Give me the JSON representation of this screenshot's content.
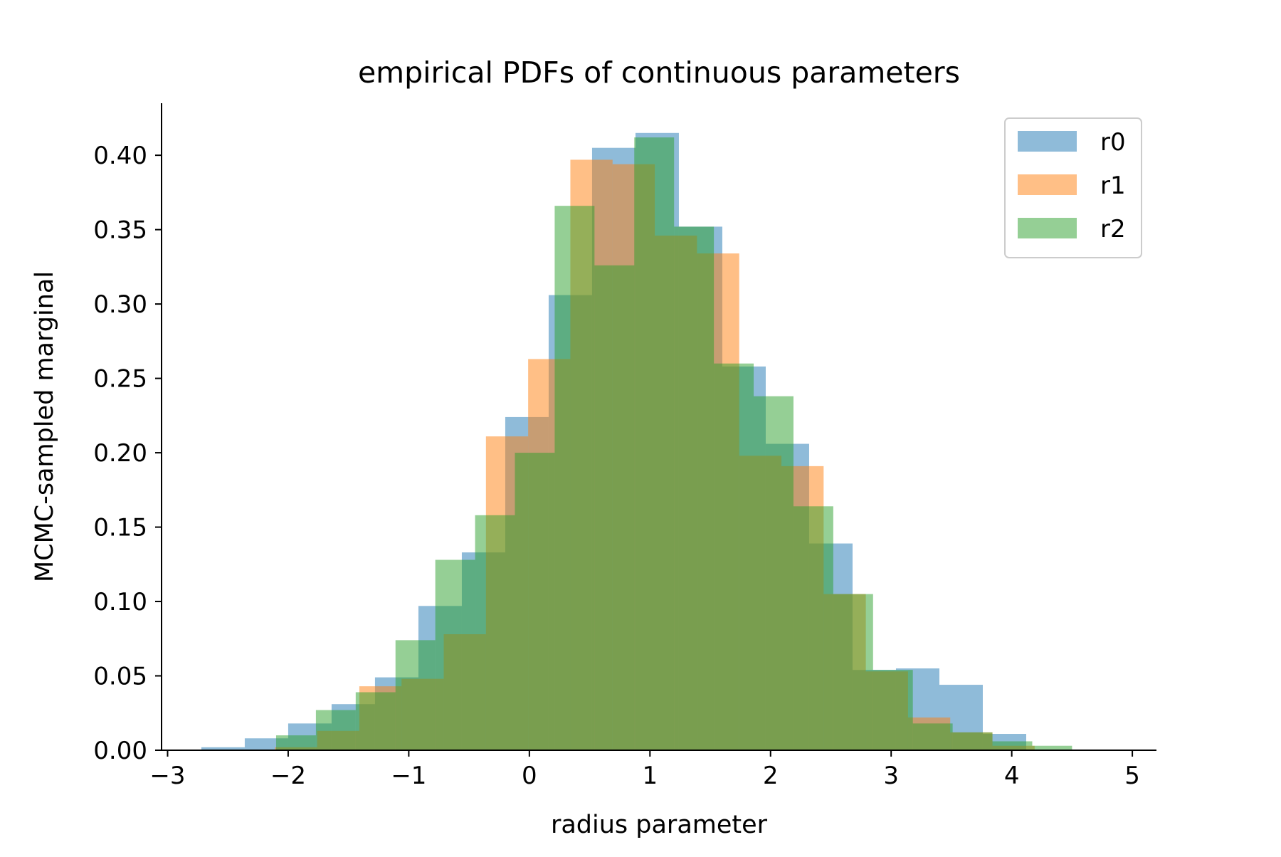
{
  "chart_data": {
    "type": "histogram",
    "title": "empirical PDFs of continuous parameters",
    "xlabel": "radius parameter",
    "ylabel": "MCMC-sampled marginal",
    "xlim": [
      -3.05,
      5.2
    ],
    "ylim": [
      0,
      0.435
    ],
    "xticks": [
      -3,
      -2,
      -1,
      0,
      1,
      2,
      3,
      4,
      5
    ],
    "xtick_labels": [
      "−3",
      "−2",
      "−1",
      "0",
      "1",
      "2",
      "3",
      "4",
      "5"
    ],
    "yticks": [
      0.0,
      0.05,
      0.1,
      0.15,
      0.2,
      0.25,
      0.3,
      0.35,
      0.4
    ],
    "ytick_labels": [
      "0.00",
      "0.05",
      "0.10",
      "0.15",
      "0.20",
      "0.25",
      "0.30",
      "0.35",
      "0.40"
    ],
    "grid": false,
    "legend_position": "top-right",
    "bar_alpha": 0.5,
    "series": [
      {
        "name": "r0",
        "color": "#1f77b4",
        "edges": [
          -2.72,
          -2.36,
          -2.0,
          -1.64,
          -1.28,
          -0.92,
          -0.56,
          -0.2,
          0.16,
          0.52,
          0.88,
          1.24,
          1.6,
          1.96,
          2.32,
          2.68,
          3.04,
          3.4,
          3.76,
          4.12
        ],
        "values": [
          0.002,
          0.008,
          0.018,
          0.031,
          0.049,
          0.097,
          0.133,
          0.224,
          0.306,
          0.405,
          0.415,
          0.352,
          0.258,
          0.206,
          0.139,
          0.054,
          0.055,
          0.044,
          0.011
        ]
      },
      {
        "name": "r1",
        "color": "#ff7f0e",
        "edges": [
          -2.11,
          -1.76,
          -1.41,
          -1.06,
          -0.71,
          -0.36,
          -0.01,
          0.34,
          0.69,
          1.04,
          1.39,
          1.74,
          2.09,
          2.44,
          2.79,
          3.14,
          3.49,
          3.84,
          4.19
        ],
        "values": [
          0.002,
          0.013,
          0.043,
          0.048,
          0.078,
          0.211,
          0.263,
          0.397,
          0.394,
          0.346,
          0.334,
          0.198,
          0.191,
          0.105,
          0.053,
          0.022,
          0.012,
          0.003
        ]
      },
      {
        "name": "r2",
        "color": "#2ca02c",
        "edges": [
          -2.1,
          -1.77,
          -1.44,
          -1.11,
          -0.78,
          -0.45,
          -0.12,
          0.21,
          0.54,
          0.87,
          1.2,
          1.53,
          1.86,
          2.19,
          2.52,
          2.85,
          3.18,
          3.51,
          3.84,
          4.17,
          4.5
        ],
        "values": [
          0.01,
          0.027,
          0.039,
          0.074,
          0.128,
          0.158,
          0.2,
          0.366,
          0.326,
          0.412,
          0.352,
          0.26,
          0.238,
          0.164,
          0.105,
          0.054,
          0.018,
          0.012,
          0.006,
          0.003
        ]
      }
    ]
  }
}
